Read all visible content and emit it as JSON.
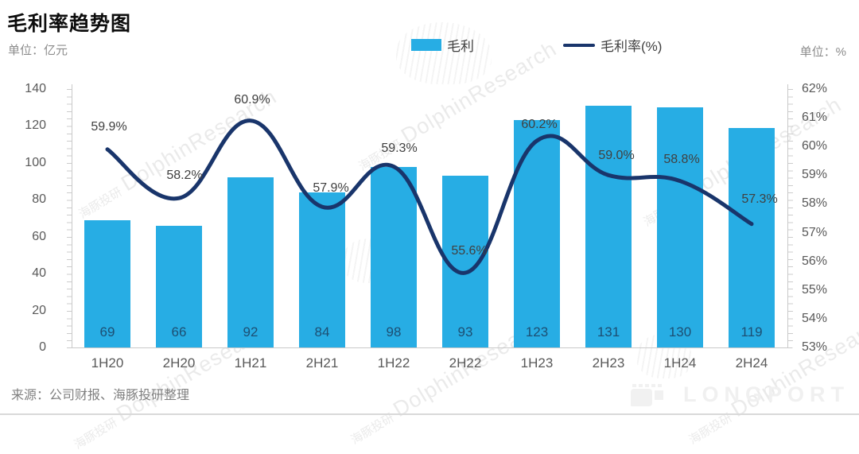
{
  "header": {
    "title": "毛利率趋势图",
    "unit_left": "单位：亿元",
    "unit_right": "单位：%"
  },
  "legend": {
    "items": [
      {
        "label": "毛利",
        "type": "bar"
      },
      {
        "label": "毛利率(%)",
        "type": "line"
      }
    ]
  },
  "watermark": {
    "cn": "海豚投研",
    "en": "DolphinResearch"
  },
  "footer": {
    "source": "来源：公司财报、海豚投研整理",
    "brand": "LONGPORT"
  },
  "colors": {
    "bar": "#27ade4",
    "line": "#19356b",
    "bar_label": "#1d4f73",
    "axis_text": "#595959",
    "point_label_text": "#404040"
  },
  "chart_data": {
    "type": "combo-bar-line",
    "title": "毛利率趋势图",
    "categories": [
      "1H20",
      "2H20",
      "1H21",
      "2H21",
      "1H22",
      "2H22",
      "1H23",
      "2H23",
      "1H24",
      "2H24"
    ],
    "series": [
      {
        "name": "毛利",
        "type": "bar",
        "axis": "left",
        "unit": "亿元",
        "values": [
          69,
          66,
          92,
          84,
          98,
          93,
          123,
          131,
          130,
          119
        ]
      },
      {
        "name": "毛利率(%)",
        "type": "line",
        "axis": "right",
        "unit": "%",
        "values": [
          59.9,
          58.2,
          60.9,
          57.9,
          59.3,
          55.6,
          60.2,
          59.0,
          58.8,
          57.3
        ],
        "point_labels": [
          "59.9%",
          "58.2%",
          "60.9%",
          "57.9%",
          "59.3%",
          "55.6%",
          "60.2%",
          "59.0%",
          "58.8%",
          "57.3%"
        ]
      }
    ],
    "left_axis": {
      "min": 0,
      "max": 140,
      "step": 20,
      "labels": [
        "140",
        "120",
        "100",
        "80",
        "60",
        "40",
        "20",
        "0"
      ]
    },
    "right_axis": {
      "min": 53,
      "max": 62,
      "step": 1,
      "labels": [
        "62%",
        "61%",
        "60%",
        "59%",
        "58%",
        "57%",
        "56%",
        "55%",
        "54%",
        "53%"
      ]
    },
    "grid": false,
    "legend_position": "top"
  }
}
